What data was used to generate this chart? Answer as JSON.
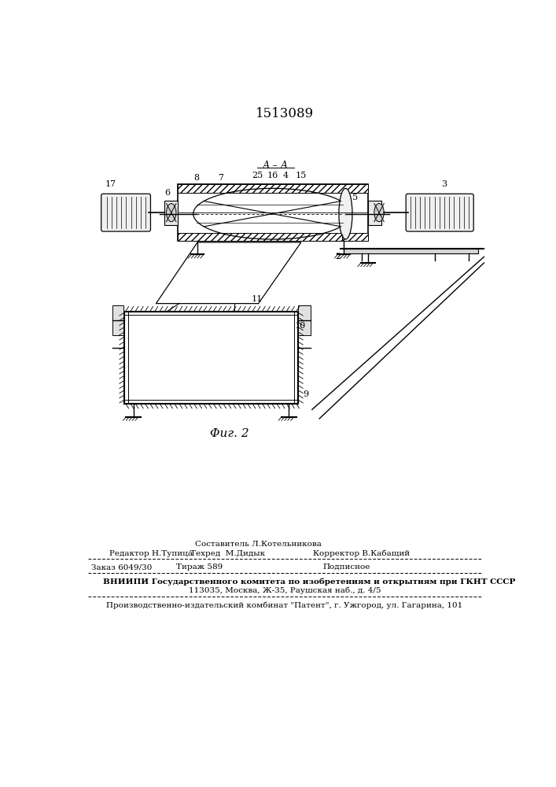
{
  "patent_number": "1513089",
  "figure_caption": "Φиг. 2",
  "bg_color": "#ffffff",
  "text_color": "#000000",
  "footer": {
    "composer_label": "Составитель Л.Котельникова",
    "editor_label": "Редактор Н.Тупица",
    "techred_label": "Техред  М.Дидык",
    "corrector_label": "Корректор В.Кабащий",
    "order_label": "Заказ 6049/30",
    "tirazh_label": "Тираж 589",
    "podpisnoe_label": "Подписное",
    "vnipi_line1": "ВНИИПИ Государственного комитета по изобретениям и открытиям при ГКНТ СССР",
    "vnipi_line2": "113035, Москва, Ж-35, Раушская наб., д. 4/5",
    "publisher_line": "Производственно-издательский комбинат \"Патент\", г. Ужгород, ул. Гагарина, 101"
  }
}
